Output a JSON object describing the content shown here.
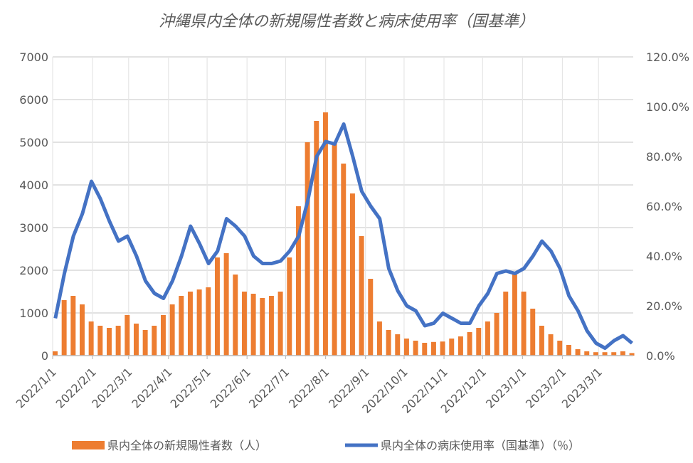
{
  "chart_data": {
    "type": "bar+line",
    "title": "沖縄県内全体の新規陽性者数と病床使用率（国基準）",
    "xlabel": "",
    "ylabel": "",
    "xlim": [
      "2022-01-01",
      "2023-03-28"
    ],
    "ylim_left": [
      0,
      7000
    ],
    "ylim_right": [
      0,
      1.2
    ],
    "grid": true,
    "legend": "bottom",
    "x_tick_labels": [
      "2022/1/1",
      "2022/2/1",
      "2022/3/1",
      "2022/4/1",
      "2022/5/1",
      "2022/6/1",
      "2022/7/1",
      "2022/8/1",
      "2022/9/1",
      "2022/10/1",
      "2022/11/1",
      "2022/12/1",
      "2023/1/1",
      "2023/2/1",
      "2023/3/1"
    ],
    "y_left_tick_labels": [
      "0",
      "1000",
      "2000",
      "3000",
      "4000",
      "5000",
      "6000",
      "7000"
    ],
    "y_right_tick_labels": [
      "0.0%",
      "20.0%",
      "40.0%",
      "60.0%",
      "80.0%",
      "100.0%",
      "120.0%"
    ],
    "x": [
      "2022-01-01",
      "2022-01-08",
      "2022-01-15",
      "2022-01-22",
      "2022-01-29",
      "2022-02-05",
      "2022-02-12",
      "2022-02-19",
      "2022-02-26",
      "2022-03-05",
      "2022-03-12",
      "2022-03-19",
      "2022-03-26",
      "2022-04-02",
      "2022-04-09",
      "2022-04-16",
      "2022-04-23",
      "2022-04-30",
      "2022-05-07",
      "2022-05-14",
      "2022-05-21",
      "2022-05-28",
      "2022-06-04",
      "2022-06-11",
      "2022-06-18",
      "2022-06-25",
      "2022-07-02",
      "2022-07-09",
      "2022-07-16",
      "2022-07-23",
      "2022-07-30",
      "2022-08-06",
      "2022-08-13",
      "2022-08-20",
      "2022-08-27",
      "2022-09-03",
      "2022-09-10",
      "2022-09-17",
      "2022-09-24",
      "2022-10-01",
      "2022-10-08",
      "2022-10-15",
      "2022-10-22",
      "2022-10-29",
      "2022-11-05",
      "2022-11-12",
      "2022-11-19",
      "2022-11-26",
      "2022-12-03",
      "2022-12-10",
      "2022-12-17",
      "2022-12-24",
      "2022-12-31",
      "2023-01-07",
      "2023-01-14",
      "2023-01-21",
      "2023-01-28",
      "2023-02-04",
      "2023-02-11",
      "2023-02-18",
      "2023-02-25",
      "2023-03-04",
      "2023-03-11",
      "2023-03-18",
      "2023-03-25"
    ],
    "series": [
      {
        "name": "県内全体の新規陽性者数（人）",
        "type": "bar",
        "axis": "left",
        "color": "#ED7D31",
        "values": [
          100,
          1300,
          1400,
          1200,
          800,
          700,
          650,
          700,
          950,
          750,
          600,
          700,
          950,
          1200,
          1400,
          1500,
          1550,
          1600,
          2300,
          2400,
          1900,
          1500,
          1450,
          1350,
          1400,
          1500,
          2300,
          3500,
          5000,
          5500,
          5700,
          5000,
          4500,
          3800,
          2800,
          1800,
          800,
          600,
          500,
          400,
          350,
          300,
          320,
          330,
          400,
          450,
          550,
          650,
          800,
          1000,
          1500,
          1900,
          1500,
          1100,
          700,
          500,
          350,
          250,
          150,
          100,
          80,
          80,
          80,
          100,
          60
        ]
      },
      {
        "name": "県内全体の病床使用率（国基準）（％）",
        "type": "line",
        "axis": "right",
        "color": "#4472C4",
        "values": [
          0.15,
          0.33,
          0.48,
          0.57,
          0.7,
          0.63,
          0.54,
          0.46,
          0.48,
          0.4,
          0.3,
          0.25,
          0.23,
          0.3,
          0.4,
          0.52,
          0.45,
          0.37,
          0.42,
          0.55,
          0.52,
          0.48,
          0.4,
          0.37,
          0.37,
          0.38,
          0.42,
          0.48,
          0.62,
          0.8,
          0.86,
          0.85,
          0.93,
          0.8,
          0.66,
          0.6,
          0.55,
          0.35,
          0.26,
          0.2,
          0.18,
          0.12,
          0.13,
          0.17,
          0.15,
          0.13,
          0.13,
          0.2,
          0.25,
          0.33,
          0.34,
          0.33,
          0.35,
          0.4,
          0.46,
          0.42,
          0.35,
          0.24,
          0.18,
          0.1,
          0.05,
          0.03,
          0.06,
          0.08,
          0.05
        ]
      }
    ]
  }
}
